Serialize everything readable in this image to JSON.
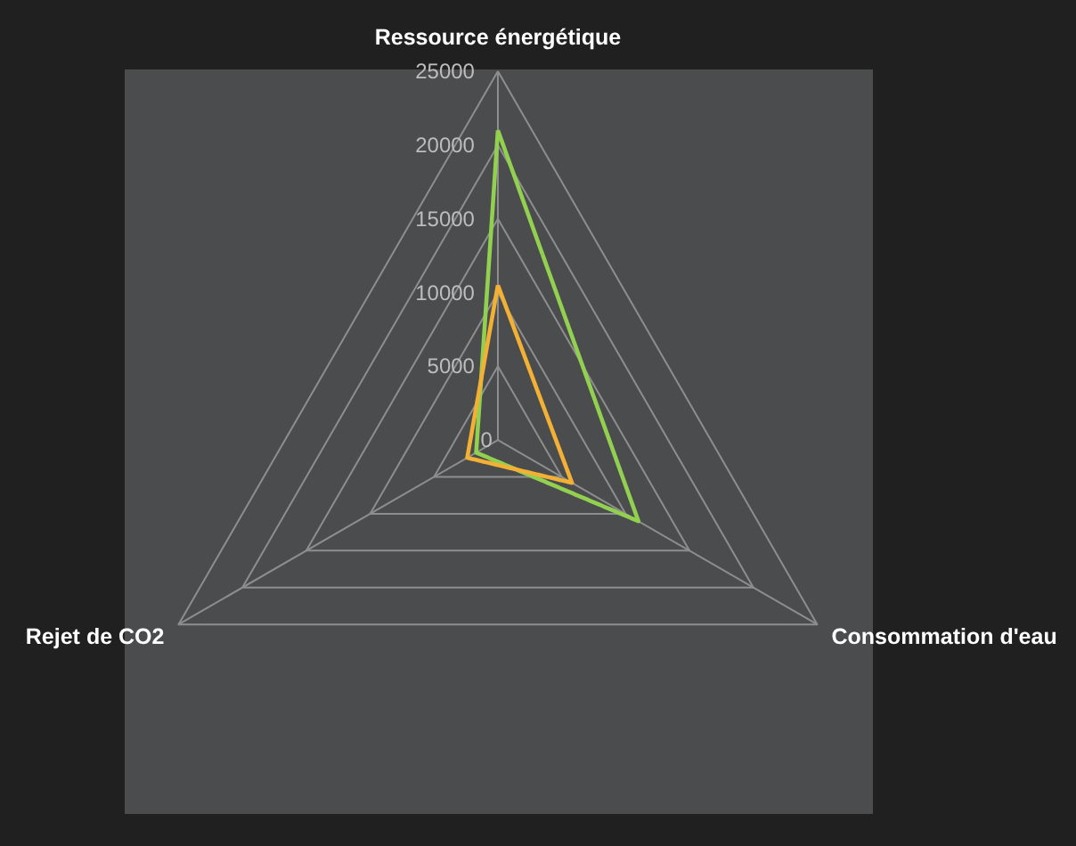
{
  "chart_data": {
    "type": "radar",
    "categories": [
      "Ressource énergétique",
      "Consommation d'eau",
      "Rejet de CO2"
    ],
    "series": [
      {
        "color": "#92d050",
        "values": [
          21000,
          11000,
          1700
        ]
      },
      {
        "color": "#f2b134",
        "values": [
          10500,
          5800,
          2400
        ]
      }
    ],
    "ylim": [
      0,
      25000
    ],
    "yticks": [
      0,
      5000,
      10000,
      15000,
      20000,
      25000
    ],
    "grid": true
  }
}
